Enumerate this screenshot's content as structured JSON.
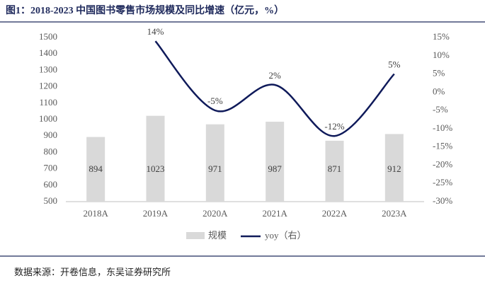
{
  "chart_data": {
    "type": "bar-line",
    "title": "图1：2018-2023 中国图书零售市场规模及同比增速（亿元，%）",
    "source": "数据来源：开卷信息，东吴证券研究所",
    "categories": [
      "2018A",
      "2019A",
      "2020A",
      "2021A",
      "2022A",
      "2023A"
    ],
    "series": [
      {
        "name": "规模",
        "type": "bar",
        "color": "#d9d9d9",
        "values": [
          894,
          1023,
          971,
          987,
          871,
          912
        ]
      },
      {
        "name": "yoy（右）",
        "type": "line",
        "axis": "y2",
        "color": "#0f1a5a",
        "values": [
          null,
          14,
          -5,
          2,
          -12,
          5
        ],
        "value_labels": [
          null,
          "14%",
          "-5%",
          "2%",
          "-12%",
          "5%"
        ]
      }
    ],
    "ylim": [
      500,
      1500
    ],
    "yticks": [
      500,
      600,
      700,
      800,
      900,
      1000,
      1100,
      1200,
      1300,
      1400,
      1500
    ],
    "y2lim": [
      -30,
      15
    ],
    "y2ticks": [
      {
        "value": -30,
        "label": "-30%"
      },
      {
        "value": -25,
        "label": "-25%"
      },
      {
        "value": -20,
        "label": "-20%"
      },
      {
        "value": -15,
        "label": "-15%"
      },
      {
        "value": -10,
        "label": "-10%"
      },
      {
        "value": -5,
        "label": "-5%"
      },
      {
        "value": 0,
        "label": "0%"
      },
      {
        "value": 5,
        "label": "5%"
      },
      {
        "value": 10,
        "label": "10%"
      },
      {
        "value": 15,
        "label": "15%"
      }
    ]
  }
}
